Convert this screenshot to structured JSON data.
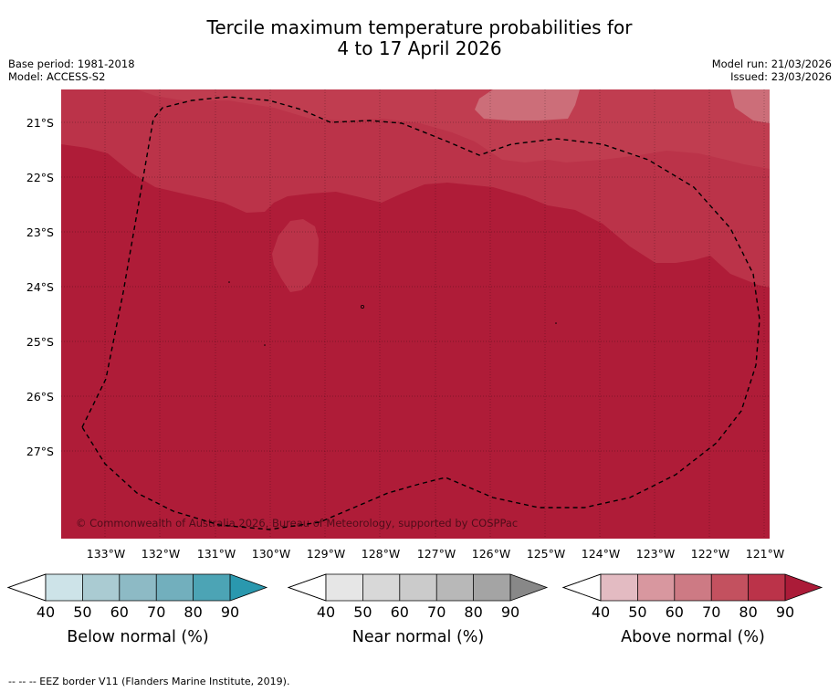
{
  "title_line1": "Tercile maximum temperature probabilities for",
  "title_line2": "4 to 17 April 2026",
  "base_period": "Base period: 1981-2018",
  "model": "Model: ACCESS-S2",
  "model_run": "Model run: 21/03/2026",
  "issued": "Issued: 23/03/2026",
  "copyright": "© Commonwealth of Australia 2026, Bureau of Meteorology, supported by COSPPac",
  "lat_labels": [
    "21°S",
    "22°S",
    "23°S",
    "24°S",
    "25°S",
    "26°S",
    "27°S"
  ],
  "lon_labels": [
    "133°W",
    "132°W",
    "131°W",
    "130°W",
    "129°W",
    "128°W",
    "127°W",
    "126°W",
    "125°W",
    "124°W",
    "123°W",
    "122°W",
    "121°W"
  ],
  "colorbars": [
    {
      "label": "Below normal (%)",
      "ticks": [
        "40",
        "50",
        "60",
        "70",
        "80",
        "90"
      ],
      "colors": [
        "#cde3e8",
        "#aacbd2",
        "#8dbac5",
        "#72afbd",
        "#4ca4b5",
        "#2a98ae"
      ]
    },
    {
      "label": "Near normal (%)",
      "ticks": [
        "40",
        "50",
        "60",
        "70",
        "80",
        "90"
      ],
      "colors": [
        "#e6e6e6",
        "#d8d8d8",
        "#cbcbcb",
        "#b8b8b8",
        "#a4a4a4",
        "#888888"
      ]
    },
    {
      "label": "Above normal (%)",
      "ticks": [
        "40",
        "50",
        "60",
        "70",
        "80",
        "90"
      ],
      "colors": [
        "#e3bbc2",
        "#d8979f",
        "#cd7a84",
        "#c3515f",
        "#bb3349",
        "#ab1b38"
      ]
    }
  ],
  "map_colors": {
    "band_70": "#c3515f",
    "band_80": "#bb3349",
    "band_90": "#af1c38"
  },
  "footnote": "--  --  -- EEZ border V11 (Flanders Marine Institute, 2019)."
}
